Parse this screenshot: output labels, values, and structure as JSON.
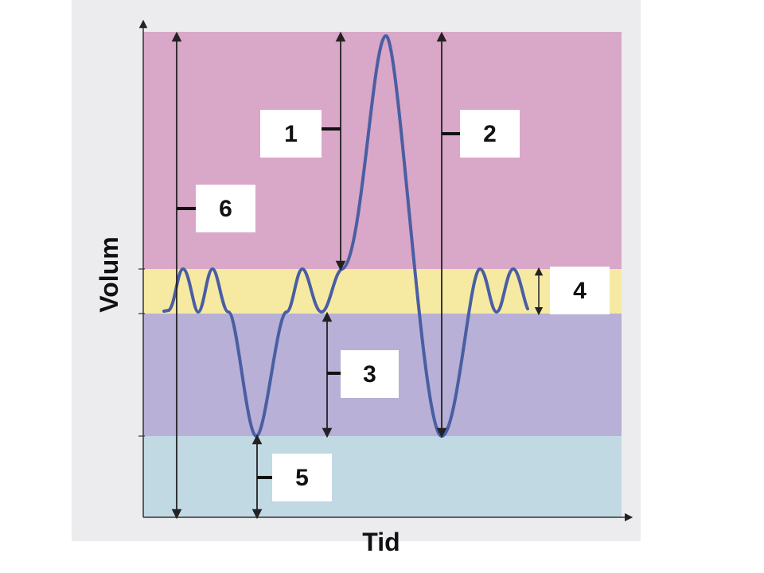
{
  "axes": {
    "y_label": "Volum",
    "x_label": "Tid"
  },
  "zones": [
    {
      "id": "top",
      "color": "#d9a7c7"
    },
    {
      "id": "tidal",
      "color": "#f6eaa3"
    },
    {
      "id": "mid",
      "color": "#b8b0d6"
    },
    {
      "id": "bottom",
      "color": "#c1d9e3"
    }
  ],
  "colors": {
    "curve": "#4a5ea3",
    "arrow": "#222222",
    "label_box": "#ffffff",
    "background_paper": "#ececef"
  },
  "labels": [
    {
      "id": "1",
      "text": "1"
    },
    {
      "id": "2",
      "text": "2"
    },
    {
      "id": "3",
      "text": "3"
    },
    {
      "id": "4",
      "text": "4"
    },
    {
      "id": "5",
      "text": "5"
    },
    {
      "id": "6",
      "text": "6"
    }
  ]
}
